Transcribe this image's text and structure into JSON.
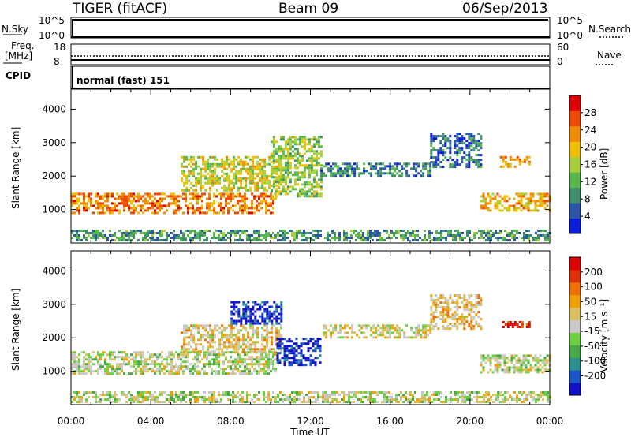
{
  "header": {
    "radar": "TIGER (fitACF)",
    "beam": "Beam 09",
    "date": "06/Sep/2013"
  },
  "top_panels": {
    "nsky_label": "N.Sky",
    "nsky_ticks": [
      "10^5",
      "10^0"
    ],
    "nsearch_label": "N.Search",
    "freq_label_1": "Freq.",
    "freq_label_2": "[MHz]",
    "freq_ticks": [
      "18",
      "8"
    ],
    "nave_label": "Nave",
    "nave_ticks": [
      "60",
      "0"
    ],
    "cpid_label": "CPID",
    "cpid_text": "normal (fast) 151"
  },
  "chart_data": [
    {
      "type": "heatmap",
      "name": "power",
      "ylabel": "Slant Range [km]",
      "xlabel": "",
      "yticks": [
        "1000",
        "2000",
        "3000",
        "4000"
      ],
      "ylim": [
        0,
        4600
      ],
      "xlim_hours": [
        0,
        24
      ],
      "colorbar_label": "Power [dB]",
      "colorbar_ticks": [
        "4",
        "8",
        "12",
        "16",
        "20",
        "24",
        "28"
      ],
      "colorbar_colors": [
        "#0a1ee0",
        "#2a55a8",
        "#3e8f6a",
        "#58b84a",
        "#a8cf3a",
        "#f0c000",
        "#f08c00",
        "#f04a00",
        "#e00000"
      ],
      "regions": [
        {
          "start_hr": 0.0,
          "end_hr": 10.3,
          "range_low_km": 900,
          "range_high_km": 1500,
          "level": 0.75
        },
        {
          "start_hr": 5.5,
          "end_hr": 10.5,
          "range_low_km": 1600,
          "range_high_km": 2600,
          "level": 0.55
        },
        {
          "start_hr": 10.0,
          "end_hr": 12.5,
          "range_low_km": 1400,
          "range_high_km": 3200,
          "level": 0.45
        },
        {
          "start_hr": 12.5,
          "end_hr": 18.0,
          "range_low_km": 2000,
          "range_high_km": 2400,
          "level": 0.25
        },
        {
          "start_hr": 18.0,
          "end_hr": 20.5,
          "range_low_km": 2300,
          "range_high_km": 3300,
          "level": 0.2
        },
        {
          "start_hr": 20.5,
          "end_hr": 24.0,
          "range_low_km": 1000,
          "range_high_km": 1500,
          "level": 0.65
        },
        {
          "start_hr": 21.5,
          "end_hr": 23.0,
          "range_low_km": 2300,
          "range_high_km": 2600,
          "level": 0.7
        },
        {
          "start_hr": 0.0,
          "end_hr": 24.0,
          "range_low_km": 100,
          "range_high_km": 400,
          "level": 0.3
        }
      ]
    },
    {
      "type": "heatmap",
      "name": "velocity",
      "ylabel": "Slant Range [km]",
      "xlabel": "Time UT",
      "xticks": [
        "00:00",
        "04:00",
        "08:00",
        "12:00",
        "16:00",
        "20:00",
        "00:00"
      ],
      "yticks": [
        "1000",
        "2000",
        "3000",
        "4000"
      ],
      "ylim": [
        0,
        4600
      ],
      "xlim_hours": [
        0,
        24
      ],
      "colorbar_label": "Velocity [m s⁻¹]",
      "colorbar_ticks": [
        "200",
        "100",
        "50",
        "15",
        "-15",
        "-50",
        "-100",
        "-200"
      ],
      "colorbar_colors": [
        "#1010c8",
        "#1a55c8",
        "#2a8f8f",
        "#46a846",
        "#6cd040",
        "#c8c8c8",
        "#d8c060",
        "#f0a000",
        "#f07000",
        "#e03000",
        "#e00000"
      ],
      "regions": [
        {
          "start_hr": 0.0,
          "end_hr": 10.3,
          "range_low_km": 900,
          "range_high_km": 1600,
          "level": 0.5
        },
        {
          "start_hr": 5.5,
          "end_hr": 10.5,
          "range_low_km": 1600,
          "range_high_km": 2400,
          "level": 0.6
        },
        {
          "start_hr": 8.0,
          "end_hr": 10.5,
          "range_low_km": 2400,
          "range_high_km": 3100,
          "level": 0.05
        },
        {
          "start_hr": 10.3,
          "end_hr": 12.5,
          "range_low_km": 1200,
          "range_high_km": 2000,
          "level": 0.05
        },
        {
          "start_hr": 12.5,
          "end_hr": 18.0,
          "range_low_km": 2000,
          "range_high_km": 2400,
          "level": 0.55
        },
        {
          "start_hr": 18.0,
          "end_hr": 20.5,
          "range_low_km": 2300,
          "range_high_km": 3300,
          "level": 0.62
        },
        {
          "start_hr": 20.5,
          "end_hr": 24.0,
          "range_low_km": 1000,
          "range_high_km": 1500,
          "level": 0.5
        },
        {
          "start_hr": 21.5,
          "end_hr": 23.0,
          "range_low_km": 2300,
          "range_high_km": 2500,
          "level": 0.95
        },
        {
          "start_hr": 0.0,
          "end_hr": 24.0,
          "range_low_km": 100,
          "range_high_km": 400,
          "level": 0.5
        }
      ]
    }
  ]
}
